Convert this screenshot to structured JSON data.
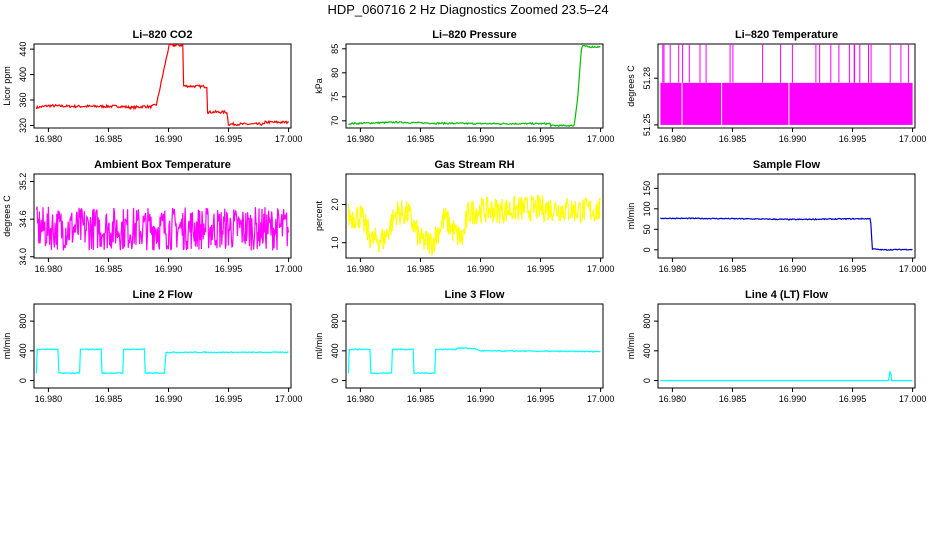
{
  "page_title": "HDP_060716  2 Hz Diagnostics Zoomed 23.5–24",
  "chart_data": [
    {
      "type": "line",
      "title": "Li–820 CO2",
      "ylabel": "Licor ppm",
      "color": "#ff0000",
      "xlim": [
        16.9788,
        17.0002
      ],
      "ylim": [
        316,
        448
      ],
      "xticks": [
        "16.980",
        "16.985",
        "16.990",
        "16.995",
        "17.000"
      ],
      "xtick_values": [
        16.98,
        16.985,
        16.99,
        16.995,
        17.0
      ],
      "yticks": [
        "320",
        "360",
        "400",
        "440"
      ],
      "ytick_values": [
        320,
        360,
        400,
        440
      ],
      "series": [
        {
          "x": [
            16.979,
            16.98,
            16.982,
            16.986,
            16.987,
            16.988,
            16.9885,
            16.989,
            16.99005,
            16.9912,
            16.99125,
            16.9932,
            16.99325,
            16.9949,
            16.99495,
            16.997,
            16.998,
            16.99805,
            16.999,
            17.0
          ],
          "y": [
            348,
            351,
            350,
            350,
            348,
            350,
            349,
            353,
            446,
            446,
            382,
            381,
            341,
            341,
            322,
            322,
            322,
            325,
            325,
            325
          ],
          "noise": 2
        }
      ]
    },
    {
      "type": "line",
      "title": "Li–820 Pressure",
      "ylabel": "kPa",
      "color": "#00c000",
      "xlim": [
        16.9788,
        17.0002
      ],
      "ylim": [
        68.5,
        86
      ],
      "xticks": [
        "16.980",
        "16.985",
        "16.990",
        "16.995",
        "17.000"
      ],
      "xtick_values": [
        16.98,
        16.985,
        16.99,
        16.995,
        17.0
      ],
      "yticks": [
        "70",
        "75",
        "80",
        "85"
      ],
      "ytick_values": [
        70,
        75,
        80,
        85
      ],
      "series": [
        {
          "x": [
            16.979,
            16.983,
            16.986,
            16.99,
            16.9958,
            16.99585,
            16.9978,
            16.9981,
            16.9984,
            16.9985,
            16.999,
            17.0
          ],
          "y": [
            69.4,
            69.7,
            69.5,
            69.4,
            69.4,
            69.0,
            69.0,
            75,
            85,
            85.6,
            85.4,
            85.4
          ],
          "noise": 0.15
        }
      ]
    },
    {
      "type": "line",
      "title": "Li–820 Temperature",
      "ylabel": "degrees C",
      "color": "#ff00ff",
      "xlim": [
        16.9788,
        17.0002
      ],
      "ylim": [
        51.248,
        51.302
      ],
      "xticks": [
        "16.980",
        "16.985",
        "16.990",
        "16.995",
        "17.000"
      ],
      "xtick_values": [
        16.98,
        16.985,
        16.99,
        16.995,
        17.0
      ],
      "yticks": [
        "51.25",
        "51.28"
      ],
      "ytick_values": [
        51.25,
        51.28
      ],
      "series": [
        {
          "x": [
            16.979,
            17.0
          ],
          "y": [
            51.25,
            51.27
          ],
          "band": [
            51.25,
            51.277
          ],
          "spike_to": 51.302,
          "dip_to": 51.248
        }
      ]
    },
    {
      "type": "line",
      "title": "Ambient Box Temperature",
      "ylabel": "degrees C",
      "color": "#ff00ff",
      "xlim": [
        16.9788,
        17.0002
      ],
      "ylim": [
        33.98,
        35.32
      ],
      "xticks": [
        "16.980",
        "16.985",
        "16.990",
        "16.995",
        "17.000"
      ],
      "xtick_values": [
        16.98,
        16.985,
        16.99,
        16.995,
        17.0
      ],
      "yticks": [
        "34.0",
        "34.6",
        "35.2"
      ],
      "ytick_values": [
        34.0,
        34.6,
        35.2
      ],
      "series": [
        {
          "x": [
            16.979,
            17.0
          ],
          "y": [
            34.45,
            34.45
          ],
          "noise": 0.35
        }
      ]
    },
    {
      "type": "line",
      "title": "Gas Stream RH",
      "ylabel": "percent",
      "color": "#ffff00",
      "xlim": [
        16.9788,
        17.0002
      ],
      "ylim": [
        0.6,
        2.8
      ],
      "xticks": [
        "16.980",
        "16.985",
        "16.990",
        "16.995",
        "17.000"
      ],
      "xtick_values": [
        16.98,
        16.985,
        16.99,
        16.995,
        17.0
      ],
      "yticks": [
        "1.0",
        "2.0"
      ],
      "ytick_values": [
        1.0,
        2.0
      ],
      "series": [
        {
          "x": [
            16.979,
            16.98,
            16.981,
            16.982,
            16.983,
            16.984,
            16.985,
            16.986,
            16.987,
            16.988,
            16.9885,
            16.989,
            16.99,
            16.992,
            16.994,
            16.996,
            16.998,
            17.0
          ],
          "y": [
            1.7,
            1.7,
            1.05,
            1.1,
            1.8,
            1.75,
            1.05,
            1.0,
            1.65,
            1.2,
            1.1,
            1.8,
            1.85,
            1.85,
            1.9,
            1.9,
            1.85,
            1.85
          ],
          "noise": 0.35
        }
      ]
    },
    {
      "type": "line",
      "title": "Sample Flow",
      "ylabel": "ml/min",
      "color": "#0000cc",
      "xlim": [
        16.9788,
        17.0002
      ],
      "ylim": [
        -20,
        185
      ],
      "xticks": [
        "16.980",
        "16.985",
        "16.990",
        "16.995",
        "17.000"
      ],
      "xtick_values": [
        16.98,
        16.985,
        16.99,
        16.995,
        17.0
      ],
      "yticks": [
        "0",
        "50",
        "100",
        "150"
      ],
      "ytick_values": [
        0,
        50,
        100,
        150
      ],
      "series": [
        {
          "x": [
            16.979,
            16.985,
            16.99,
            16.9965,
            16.99665,
            16.9975,
            17.0
          ],
          "y": [
            77,
            76,
            74,
            76,
            2,
            0,
            1
          ],
          "noise": 1.2
        }
      ]
    },
    {
      "type": "line",
      "title": "Line 2 Flow",
      "ylabel": "ml/min",
      "color": "#00ffff",
      "xlim": [
        16.9788,
        17.0002
      ],
      "ylim": [
        -100,
        1030
      ],
      "xticks": [
        "16.980",
        "16.985",
        "16.990",
        "16.995",
        "17.000"
      ],
      "xtick_values": [
        16.98,
        16.985,
        16.99,
        16.995,
        17.0
      ],
      "yticks": [
        "0",
        "400",
        "800"
      ],
      "ytick_values": [
        0,
        400,
        800
      ],
      "series": [
        {
          "x": [
            16.979,
            16.97905,
            16.9808,
            16.98085,
            16.9826,
            16.98265,
            16.9844,
            16.98445,
            16.9862,
            16.98625,
            16.988,
            16.98805,
            16.9897,
            16.98975,
            17.0
          ],
          "y": [
            100,
            420,
            420,
            100,
            100,
            420,
            420,
            100,
            100,
            420,
            420,
            100,
            100,
            380,
            380
          ],
          "noise": 6
        }
      ]
    },
    {
      "type": "line",
      "title": "Line 3 Flow",
      "ylabel": "ml/min",
      "color": "#00ffff",
      "xlim": [
        16.9788,
        17.0002
      ],
      "ylim": [
        -100,
        1030
      ],
      "xticks": [
        "16.980",
        "16.985",
        "16.990",
        "16.995",
        "17.000"
      ],
      "xtick_values": [
        16.98,
        16.985,
        16.99,
        16.995,
        17.0
      ],
      "yticks": [
        "0",
        "400",
        "800"
      ],
      "ytick_values": [
        0,
        400,
        800
      ],
      "series": [
        {
          "x": [
            16.979,
            16.97905,
            16.9808,
            16.98085,
            16.9826,
            16.98265,
            16.9844,
            16.98445,
            16.9862,
            16.98625,
            16.988,
            16.98805,
            16.9895,
            16.99,
            17.0
          ],
          "y": [
            100,
            420,
            420,
            100,
            100,
            420,
            420,
            100,
            100,
            420,
            420,
            440,
            430,
            400,
            390
          ],
          "noise": 6
        }
      ]
    },
    {
      "type": "line",
      "title": "Line 4 (LT) Flow",
      "ylabel": "ml/min",
      "color": "#00ffff",
      "xlim": [
        16.9788,
        17.0002
      ],
      "ylim": [
        -100,
        1030
      ],
      "xticks": [
        "16.980",
        "16.985",
        "16.990",
        "16.995",
        "17.000"
      ],
      "xtick_values": [
        16.98,
        16.985,
        16.99,
        16.995,
        17.0
      ],
      "yticks": [
        "0",
        "400",
        "800"
      ],
      "ytick_values": [
        0,
        400,
        800
      ],
      "series": [
        {
          "x": [
            16.979,
            16.998,
            16.99815,
            16.9982,
            16.99825,
            17.0
          ],
          "y": [
            0,
            0,
            150,
            80,
            0,
            0
          ],
          "noise": 0
        }
      ]
    }
  ]
}
